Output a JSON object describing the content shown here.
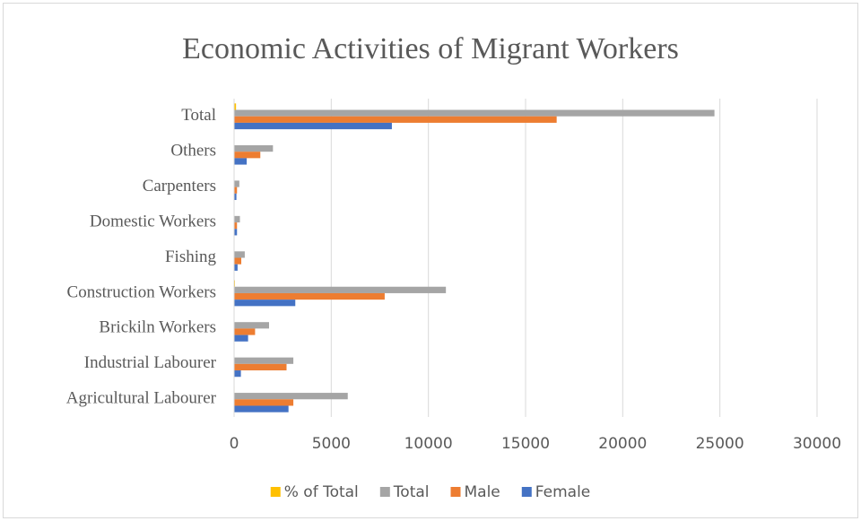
{
  "chart_data": {
    "type": "bar",
    "orientation": "horizontal",
    "title": "Economic Activities of Migrant Workers",
    "categories": [
      "Agricultural Labourer",
      "Industrial Labourer",
      "Brickiln Workers",
      "Construction Workers",
      "Fishing",
      "Domestic Workers",
      "Carpenters",
      "Others",
      "Total"
    ],
    "series": [
      {
        "name": "% of Total",
        "color": "#ffc000",
        "values": [
          24,
          12,
          7,
          44,
          2,
          1,
          1,
          8,
          100
        ]
      },
      {
        "name": "Total",
        "color": "#a5a5a5",
        "values": [
          5850,
          3050,
          1800,
          10900,
          550,
          300,
          270,
          2000,
          24720
        ]
      },
      {
        "name": "Male",
        "color": "#ed7d31",
        "values": [
          3050,
          2700,
          1080,
          7750,
          370,
          150,
          150,
          1350,
          16600
        ]
      },
      {
        "name": "Female",
        "color": "#4472c4",
        "values": [
          2800,
          350,
          720,
          3150,
          180,
          150,
          120,
          650,
          8120
        ]
      }
    ],
    "xlim": [
      0,
      30000
    ],
    "xticks": [
      0,
      5000,
      10000,
      15000,
      20000,
      25000,
      30000
    ],
    "grid": true,
    "legend": "bottom"
  }
}
